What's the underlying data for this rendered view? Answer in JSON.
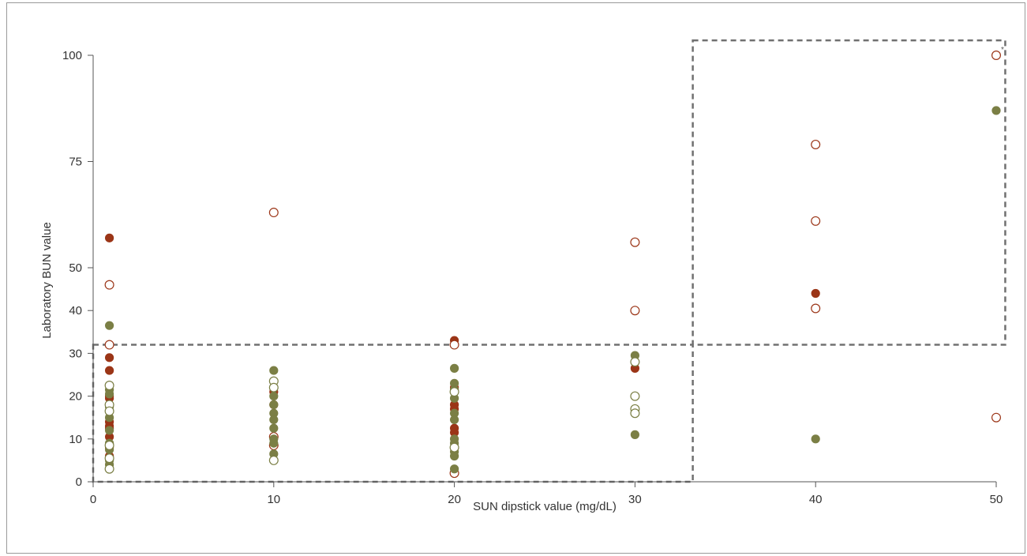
{
  "chart_data": {
    "type": "scatter",
    "xlabel": "SUN dipstick value (mg/dL)",
    "ylabel": "Laboratory BUN value",
    "xlim": [
      0,
      50
    ],
    "ylim": [
      0,
      100
    ],
    "x_ticks": [
      0,
      10,
      20,
      30,
      40,
      50
    ],
    "y_ticks": [
      0,
      10,
      20,
      30,
      40,
      50,
      75,
      100
    ],
    "grid": false,
    "annotation": "*",
    "colors": {
      "red": "#9b3517",
      "olive": "#7b7f45"
    },
    "regions": [
      {
        "x": [
          0,
          33.2
        ],
        "y": [
          0,
          32
        ]
      },
      {
        "x": [
          33.2,
          50.5
        ],
        "y": [
          32,
          103.5
        ]
      }
    ],
    "series": [
      {
        "color": "red",
        "filled": true,
        "points": [
          [
            0.9,
            57
          ],
          [
            0.9,
            29
          ],
          [
            0.9,
            26
          ],
          [
            0.9,
            20
          ],
          [
            0.9,
            19.5
          ],
          [
            0.9,
            14
          ],
          [
            0.9,
            13
          ],
          [
            0.9,
            12.5
          ],
          [
            0.9,
            10.5
          ],
          [
            0.9,
            8
          ],
          [
            0.9,
            6
          ],
          [
            10,
            21
          ],
          [
            10,
            18
          ],
          [
            20,
            33
          ],
          [
            20,
            22
          ],
          [
            20,
            18
          ],
          [
            20,
            17
          ],
          [
            20,
            12.5
          ],
          [
            20,
            11.5
          ],
          [
            30,
            26.5
          ],
          [
            40,
            44
          ]
        ]
      },
      {
        "color": "red",
        "filled": false,
        "points": [
          [
            0.9,
            46
          ],
          [
            0.9,
            32
          ],
          [
            10,
            63
          ],
          [
            10,
            10.5
          ],
          [
            10,
            8.5
          ],
          [
            20,
            32
          ],
          [
            20,
            2
          ],
          [
            30,
            56
          ],
          [
            30,
            40
          ],
          [
            40,
            79
          ],
          [
            40,
            61
          ],
          [
            40,
            40.5
          ],
          [
            50,
            100
          ],
          [
            50,
            15
          ]
        ]
      },
      {
        "color": "olive",
        "filled": true,
        "points": [
          [
            0.9,
            36.5
          ],
          [
            0.9,
            21.5
          ],
          [
            0.9,
            20.5
          ],
          [
            0.9,
            17.5
          ],
          [
            0.9,
            15
          ],
          [
            0.9,
            12
          ],
          [
            0.9,
            9
          ],
          [
            0.9,
            7.5
          ],
          [
            0.9,
            5
          ],
          [
            0.9,
            4
          ],
          [
            10,
            26
          ],
          [
            10,
            20
          ],
          [
            10,
            18
          ],
          [
            10,
            16
          ],
          [
            10,
            14.5
          ],
          [
            10,
            12.5
          ],
          [
            10,
            10
          ],
          [
            10,
            9
          ],
          [
            10,
            6.5
          ],
          [
            20,
            26.5
          ],
          [
            20,
            23
          ],
          [
            20,
            21.5
          ],
          [
            20,
            19.5
          ],
          [
            20,
            16
          ],
          [
            20,
            14.5
          ],
          [
            20,
            10
          ],
          [
            20,
            9
          ],
          [
            20,
            7
          ],
          [
            20,
            6
          ],
          [
            20,
            3
          ],
          [
            30,
            29.5
          ],
          [
            30,
            11
          ],
          [
            40,
            10
          ],
          [
            50,
            87
          ]
        ]
      },
      {
        "color": "olive",
        "filled": false,
        "points": [
          [
            0.9,
            22.5
          ],
          [
            0.9,
            18
          ],
          [
            0.9,
            16.5
          ],
          [
            0.9,
            8.5
          ],
          [
            0.9,
            5.5
          ],
          [
            0.9,
            3
          ],
          [
            10,
            23.5
          ],
          [
            10,
            22
          ],
          [
            10,
            5
          ],
          [
            20,
            21
          ],
          [
            20,
            8
          ],
          [
            30,
            28
          ],
          [
            30,
            20
          ],
          [
            30,
            17
          ],
          [
            30,
            16
          ]
        ]
      }
    ]
  }
}
